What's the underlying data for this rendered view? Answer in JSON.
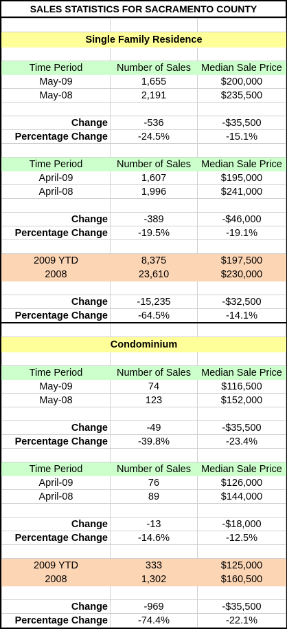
{
  "title": "SALES STATISTICS FOR SACRAMENTO COUNTY",
  "sections": [
    {
      "name": "Single Family Residence",
      "groups": [
        {
          "header": [
            "Time Period",
            "Number of Sales",
            "Median Sale Price"
          ],
          "rows": [
            [
              "May-09",
              "1,655",
              "$200,000"
            ],
            [
              "May-08",
              "2,191",
              "$235,500"
            ]
          ],
          "change": [
            "Change",
            "-536",
            "-$35,500"
          ],
          "percentage_change": [
            "Percentage Change",
            "-24.5%",
            "-15.1%"
          ]
        },
        {
          "header": [
            "Time Period",
            "Number of Sales",
            "Median Sale Price"
          ],
          "rows": [
            [
              "April-09",
              "1,607",
              "$195,000"
            ],
            [
              "April-08",
              "1,996",
              "$241,000"
            ]
          ],
          "change": [
            "Change",
            "-389",
            "-$46,000"
          ],
          "percentage_change": [
            "Percentage Change",
            "-19.5%",
            "-19.1%"
          ]
        },
        {
          "rows": [
            [
              "2009 YTD",
              "8,375",
              "$197,500"
            ],
            [
              "2008",
              "23,610",
              "$230,000"
            ]
          ],
          "change": [
            "Change",
            "-15,235",
            "-$32,500"
          ],
          "percentage_change": [
            "Percentage Change",
            "-64.5%",
            "-14.1%"
          ]
        }
      ]
    },
    {
      "name": "Condominium",
      "groups": [
        {
          "header": [
            "Time Period",
            "Number of Sales",
            "Median Sale Price"
          ],
          "rows": [
            [
              "May-09",
              "74",
              "$116,500"
            ],
            [
              "May-08",
              "123",
              "$152,000"
            ]
          ],
          "change": [
            "Change",
            "-49",
            "-$35,500"
          ],
          "percentage_change": [
            "Percentage Change",
            "-39.8%",
            "-23.4%"
          ]
        },
        {
          "header": [
            "Time Period",
            "Number of Sales",
            "Median Sale Price"
          ],
          "rows": [
            [
              "April-09",
              "76",
              "$126,000"
            ],
            [
              "April-08",
              "89",
              "$144,000"
            ]
          ],
          "change": [
            "Change",
            "-13",
            "-$18,000"
          ],
          "percentage_change": [
            "Percentage Change",
            "-14.6%",
            "-12.5%"
          ]
        },
        {
          "rows": [
            [
              "2009 YTD",
              "333",
              "$125,000"
            ],
            [
              "2008",
              "1,302",
              "$160,500"
            ]
          ],
          "change": [
            "Change",
            "-969",
            "-$35,500"
          ],
          "percentage_change": [
            "Percentage Change",
            "-74.4%",
            "-22.1%"
          ]
        }
      ]
    }
  ]
}
